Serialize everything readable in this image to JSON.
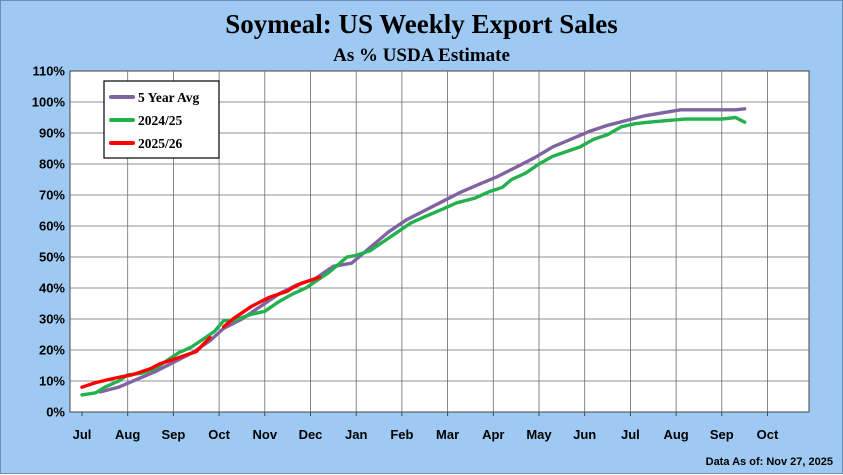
{
  "chart_data": {
    "type": "line",
    "title": "Soymeal: US Weekly Export Sales",
    "subtitle": "As % USDA Estimate",
    "footnote": "Data As of: Nov 27, 2025",
    "xlabel": "",
    "ylabel": "",
    "x_ticks": [
      "Jul",
      "Aug",
      "Sep",
      "Oct",
      "Nov",
      "Dec",
      "Jan",
      "Feb",
      "Mar",
      "Apr",
      "May",
      "Jun",
      "Jul",
      "Aug",
      "Sep",
      "Oct"
    ],
    "y_ticks": [
      "0%",
      "10%",
      "20%",
      "30%",
      "40%",
      "50%",
      "60%",
      "70%",
      "80%",
      "90%",
      "100%",
      "110%"
    ],
    "ylim": [
      0,
      110
    ],
    "xlim": [
      0,
      16.5
    ],
    "x_unit": "months from July 1",
    "grid": true,
    "legend_placement": "top-left",
    "series": [
      {
        "name": "5 Year Avg",
        "color": "#8064a2",
        "points": [
          [
            0.4,
            6.5
          ],
          [
            0.8,
            8
          ],
          [
            1.2,
            10.5
          ],
          [
            1.6,
            13
          ],
          [
            2.0,
            16
          ],
          [
            2.4,
            19
          ],
          [
            2.8,
            23
          ],
          [
            3.1,
            27
          ],
          [
            3.5,
            30
          ],
          [
            3.9,
            34
          ],
          [
            4.3,
            38
          ],
          [
            4.7,
            41
          ],
          [
            5.1,
            43
          ],
          [
            5.5,
            47
          ],
          [
            5.9,
            48
          ],
          [
            6.3,
            53
          ],
          [
            6.7,
            58
          ],
          [
            7.1,
            62
          ],
          [
            7.5,
            65
          ],
          [
            7.9,
            68
          ],
          [
            8.3,
            71
          ],
          [
            8.7,
            73.5
          ],
          [
            9.1,
            76
          ],
          [
            9.5,
            79
          ],
          [
            9.9,
            82
          ],
          [
            10.3,
            85.5
          ],
          [
            10.7,
            88
          ],
          [
            11.1,
            90.5
          ],
          [
            11.5,
            92.5
          ],
          [
            11.9,
            94
          ],
          [
            12.3,
            95.5
          ],
          [
            12.7,
            96.5
          ],
          [
            13.1,
            97.5
          ],
          [
            13.5,
            97.5
          ],
          [
            13.9,
            97.5
          ],
          [
            14.3,
            97.5
          ],
          [
            14.5,
            97.8
          ]
        ]
      },
      {
        "name": "2024/25",
        "color": "#22b14c",
        "points": [
          [
            0.0,
            5.5
          ],
          [
            0.3,
            6.2
          ],
          [
            0.5,
            8
          ],
          [
            0.8,
            10
          ],
          [
            1.0,
            12
          ],
          [
            1.3,
            12.5
          ],
          [
            1.6,
            14
          ],
          [
            1.9,
            17
          ],
          [
            2.1,
            19
          ],
          [
            2.4,
            21
          ],
          [
            2.7,
            24
          ],
          [
            2.9,
            26
          ],
          [
            3.1,
            29.5
          ],
          [
            3.3,
            29.5
          ],
          [
            3.7,
            31.5
          ],
          [
            4.0,
            32.5
          ],
          [
            4.3,
            35.5
          ],
          [
            4.6,
            38
          ],
          [
            4.9,
            40
          ],
          [
            5.2,
            43
          ],
          [
            5.4,
            45
          ],
          [
            5.6,
            47.5
          ],
          [
            5.8,
            50
          ],
          [
            6.0,
            50.5
          ],
          [
            6.3,
            52
          ],
          [
            6.6,
            55
          ],
          [
            6.9,
            58
          ],
          [
            7.2,
            61
          ],
          [
            7.5,
            63
          ],
          [
            7.9,
            65.5
          ],
          [
            8.2,
            67.5
          ],
          [
            8.6,
            69
          ],
          [
            8.9,
            71
          ],
          [
            9.2,
            72.5
          ],
          [
            9.4,
            75
          ],
          [
            9.7,
            77
          ],
          [
            10.0,
            80
          ],
          [
            10.3,
            82.5
          ],
          [
            10.6,
            84
          ],
          [
            10.9,
            85.5
          ],
          [
            11.2,
            88
          ],
          [
            11.5,
            89.5
          ],
          [
            11.8,
            92
          ],
          [
            12.1,
            93
          ],
          [
            12.4,
            93.5
          ],
          [
            12.8,
            94
          ],
          [
            13.2,
            94.5
          ],
          [
            13.6,
            94.5
          ],
          [
            14.0,
            94.5
          ],
          [
            14.3,
            95
          ],
          [
            14.5,
            93.5
          ]
        ]
      },
      {
        "name": "2025/26",
        "color": "#ff0000",
        "points": [
          [
            0.0,
            8
          ],
          [
            0.3,
            9.5
          ],
          [
            0.6,
            10.5
          ],
          [
            0.9,
            11.5
          ],
          [
            1.1,
            12
          ],
          [
            1.3,
            13
          ],
          [
            1.5,
            14
          ],
          [
            1.7,
            15.5
          ],
          [
            1.9,
            16.5
          ],
          [
            2.1,
            17.5
          ],
          [
            2.3,
            18.5
          ],
          [
            2.5,
            19.5
          ],
          [
            2.6,
            21
          ],
          [
            2.8,
            24
          ],
          [
            3.1,
            27.5
          ],
          [
            3.3,
            30
          ],
          [
            3.5,
            32
          ],
          [
            3.7,
            34
          ],
          [
            3.9,
            35.5
          ],
          [
            4.1,
            37
          ],
          [
            4.3,
            38
          ],
          [
            4.5,
            39
          ],
          [
            4.6,
            40
          ],
          [
            4.8,
            41.5
          ],
          [
            5.0,
            42.5
          ],
          [
            5.2,
            43.5
          ]
        ],
        "gap_before_index": 14
      }
    ]
  }
}
